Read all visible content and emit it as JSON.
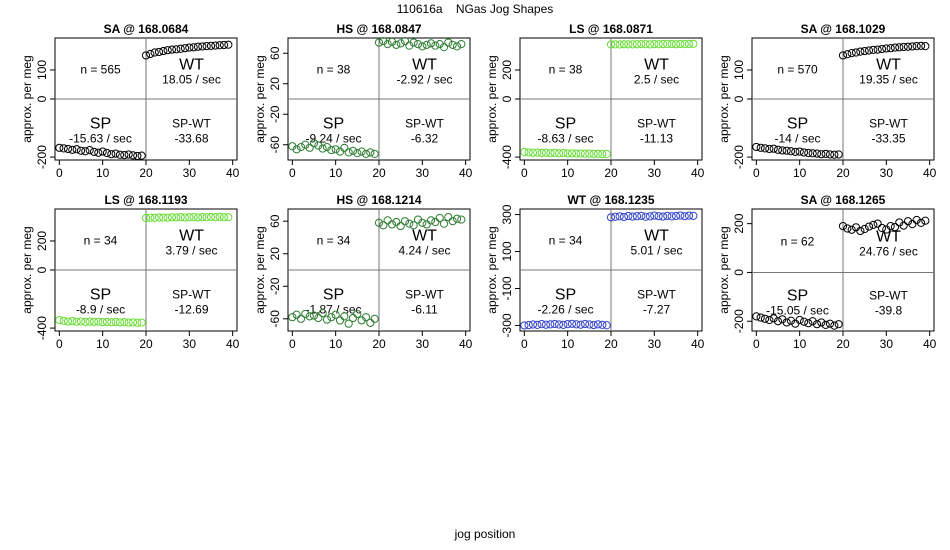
{
  "title": "110616a    NGas Jog Shapes",
  "xlabel": "jog position",
  "chart_data": [
    {
      "type": "scatter",
      "title": "SA @ 168.0684",
      "ylabel": "approx. per meg",
      "ylim": [
        -210,
        210
      ],
      "yticks": [
        -200,
        0,
        100
      ],
      "xticks": [
        0,
        10,
        20,
        30,
        40
      ],
      "xlim": [
        -1,
        41
      ],
      "color": "#000000",
      "n": "n = 565",
      "sp_rate": "-15.63 / sec",
      "wt_rate": "18.05 / sec",
      "diff": "-33.68",
      "sp_values": [
        -168,
        -170,
        -172,
        -175,
        -173,
        -178,
        -180,
        -176,
        -182,
        -185,
        -181,
        -186,
        -190,
        -188,
        -192,
        -193,
        -191,
        -194,
        -196,
        -195
      ],
      "wt_values": [
        150,
        155,
        160,
        162,
        165,
        168,
        170,
        171,
        173,
        175,
        177,
        178,
        180,
        181,
        182,
        183,
        184,
        185,
        186,
        187
      ]
    },
    {
      "type": "scatter",
      "title": "HS @ 168.0847",
      "ylabel": "approx. per meg",
      "ylim": [
        -80,
        80
      ],
      "yticks": [
        -60,
        -20,
        20,
        60
      ],
      "xticks": [
        0,
        10,
        20,
        30,
        40
      ],
      "xlim": [
        -1,
        41
      ],
      "color": "#2e7d32",
      "n": "n = 38",
      "sp_rate": "-9.24 / sec",
      "wt_rate": "-2.92 / sec",
      "diff": "-6.32",
      "sp_values": [
        -62,
        -66,
        -63,
        -60,
        -64,
        -58,
        -61,
        -65,
        -63,
        -67,
        -66,
        -69,
        -64,
        -70,
        -68,
        -71,
        -69,
        -72,
        -70,
        -72
      ],
      "wt_values": [
        74,
        76,
        72,
        75,
        71,
        73,
        76,
        70,
        74,
        72,
        69,
        71,
        73,
        70,
        72,
        68,
        74,
        71,
        69,
        72
      ]
    },
    {
      "type": "scatter",
      "title": "LS @ 168.0871",
      "ylabel": "approx. per meg",
      "ylim": [
        -420,
        420
      ],
      "yticks": [
        -400,
        0,
        200
      ],
      "xticks": [
        0,
        10,
        20,
        30,
        40
      ],
      "xlim": [
        -1,
        41
      ],
      "color": "#66dd33",
      "n": "n = 38",
      "sp_rate": "-8.63 / sec",
      "wt_rate": "2.5 / sec",
      "diff": "-11.13",
      "sp_values": [
        -365,
        -368,
        -370,
        -369,
        -372,
        -370,
        -373,
        -371,
        -374,
        -372,
        -375,
        -374,
        -376,
        -375,
        -377,
        -376,
        -378,
        -377,
        -379,
        -378
      ],
      "wt_values": [
        375,
        376,
        375,
        377,
        376,
        376,
        377,
        378,
        377,
        376,
        378,
        377,
        378,
        379,
        378,
        377,
        379,
        378,
        379,
        380
      ]
    },
    {
      "type": "scatter",
      "title": "SA @ 168.1029",
      "ylabel": "approx. per meg",
      "ylim": [
        -210,
        210
      ],
      "yticks": [
        -200,
        0,
        100
      ],
      "xticks": [
        0,
        10,
        20,
        30,
        40
      ],
      "xlim": [
        -1,
        41
      ],
      "color": "#000000",
      "n": "n = 570",
      "sp_rate": "-14 / sec",
      "wt_rate": "19.35 / sec",
      "diff": "-33.35",
      "sp_values": [
        -165,
        -168,
        -170,
        -172,
        -171,
        -175,
        -177,
        -178,
        -180,
        -182,
        -181,
        -184,
        -186,
        -187,
        -188,
        -190,
        -189,
        -191,
        -192,
        -191
      ],
      "wt_values": [
        150,
        154,
        158,
        160,
        163,
        165,
        167,
        169,
        170,
        172,
        174,
        175,
        177,
        178,
        179,
        180,
        181,
        182,
        183,
        182
      ]
    },
    {
      "type": "scatter",
      "title": "LS @ 168.1193",
      "ylabel": "approx. per meg",
      "ylim": [
        -420,
        420
      ],
      "yticks": [
        -400,
        0,
        200
      ],
      "xticks": [
        0,
        10,
        20,
        30,
        40
      ],
      "xlim": [
        -1,
        41
      ],
      "color": "#66dd33",
      "n": "n = 34",
      "sp_rate": "-8.9 / sec",
      "wt_rate": "3.79 / sec",
      "diff": "-12.69",
      "sp_values": [
        -345,
        -350,
        -355,
        -352,
        -356,
        -354,
        -358,
        -355,
        -357,
        -356,
        -359,
        -357,
        -360,
        -358,
        -361,
        -359,
        -362,
        -361,
        -363,
        -362
      ],
      "wt_values": [
        358,
        360,
        359,
        362,
        361,
        360,
        363,
        362,
        364,
        361,
        363,
        365,
        362,
        364,
        363,
        365,
        364,
        366,
        363,
        364
      ]
    },
    {
      "type": "scatter",
      "title": "HS @ 168.1214",
      "ylabel": "approx. per meg",
      "ylim": [
        -75,
        75
      ],
      "yticks": [
        -60,
        -20,
        20,
        60
      ],
      "xticks": [
        0,
        10,
        20,
        30,
        40
      ],
      "xlim": [
        -1,
        41
      ],
      "color": "#2e7d32",
      "n": "n = 34",
      "sp_rate": "-1.87 / sec",
      "wt_rate": "4.24 / sec",
      "diff": "-6.11",
      "sp_values": [
        -58,
        -55,
        -60,
        -54,
        -57,
        -56,
        -59,
        -53,
        -61,
        -58,
        -55,
        -62,
        -57,
        -66,
        -59,
        -54,
        -62,
        -58,
        -65,
        -60
      ],
      "wt_values": [
        58,
        55,
        61,
        56,
        59,
        54,
        60,
        57,
        55,
        62,
        58,
        56,
        61,
        59,
        64,
        57,
        65,
        60,
        63,
        62
      ]
    },
    {
      "type": "scatter",
      "title": "WT @ 168.1235",
      "ylabel": "approx. per meg",
      "ylim": [
        -330,
        330
      ],
      "yticks": [
        -300,
        -100,
        100,
        300
      ],
      "xticks": [
        0,
        10,
        20,
        30,
        40
      ],
      "xlim": [
        -1,
        41
      ],
      "color": "#3344cc",
      "n": "n = 34",
      "sp_rate": "-2.26 / sec",
      "wt_rate": "5.01 / sec",
      "diff": "-7.27",
      "sp_values": [
        -300,
        -298,
        -295,
        -297,
        -293,
        -296,
        -294,
        -292,
        -295,
        -297,
        -293,
        -291,
        -294,
        -296,
        -292,
        -295,
        -298,
        -294,
        -297,
        -299
      ],
      "wt_values": [
        285,
        288,
        290,
        287,
        292,
        289,
        291,
        293,
        288,
        290,
        294,
        291,
        289,
        293,
        290,
        292,
        295,
        291,
        294,
        293
      ]
    },
    {
      "type": "scatter",
      "title": "SA @ 168.1265",
      "ylabel": "approx. per meg",
      "ylim": [
        -240,
        260
      ],
      "yticks": [
        -200,
        0,
        200
      ],
      "xticks": [
        0,
        10,
        20,
        30,
        40
      ],
      "xlim": [
        -1,
        41
      ],
      "color": "#000000",
      "n": "n = 62",
      "sp_rate": "-15.05 / sec",
      "wt_rate": "24.76 / sec",
      "diff": "-39.8",
      "sp_values": [
        -180,
        -185,
        -190,
        -195,
        -188,
        -200,
        -192,
        -205,
        -198,
        -210,
        -195,
        -202,
        -208,
        -200,
        -212,
        -205,
        -215,
        -210,
        -218,
        -212
      ],
      "wt_values": [
        190,
        180,
        175,
        185,
        170,
        178,
        188,
        195,
        200,
        182,
        176,
        190,
        186,
        205,
        192,
        210,
        198,
        215,
        203,
        212
      ]
    }
  ]
}
